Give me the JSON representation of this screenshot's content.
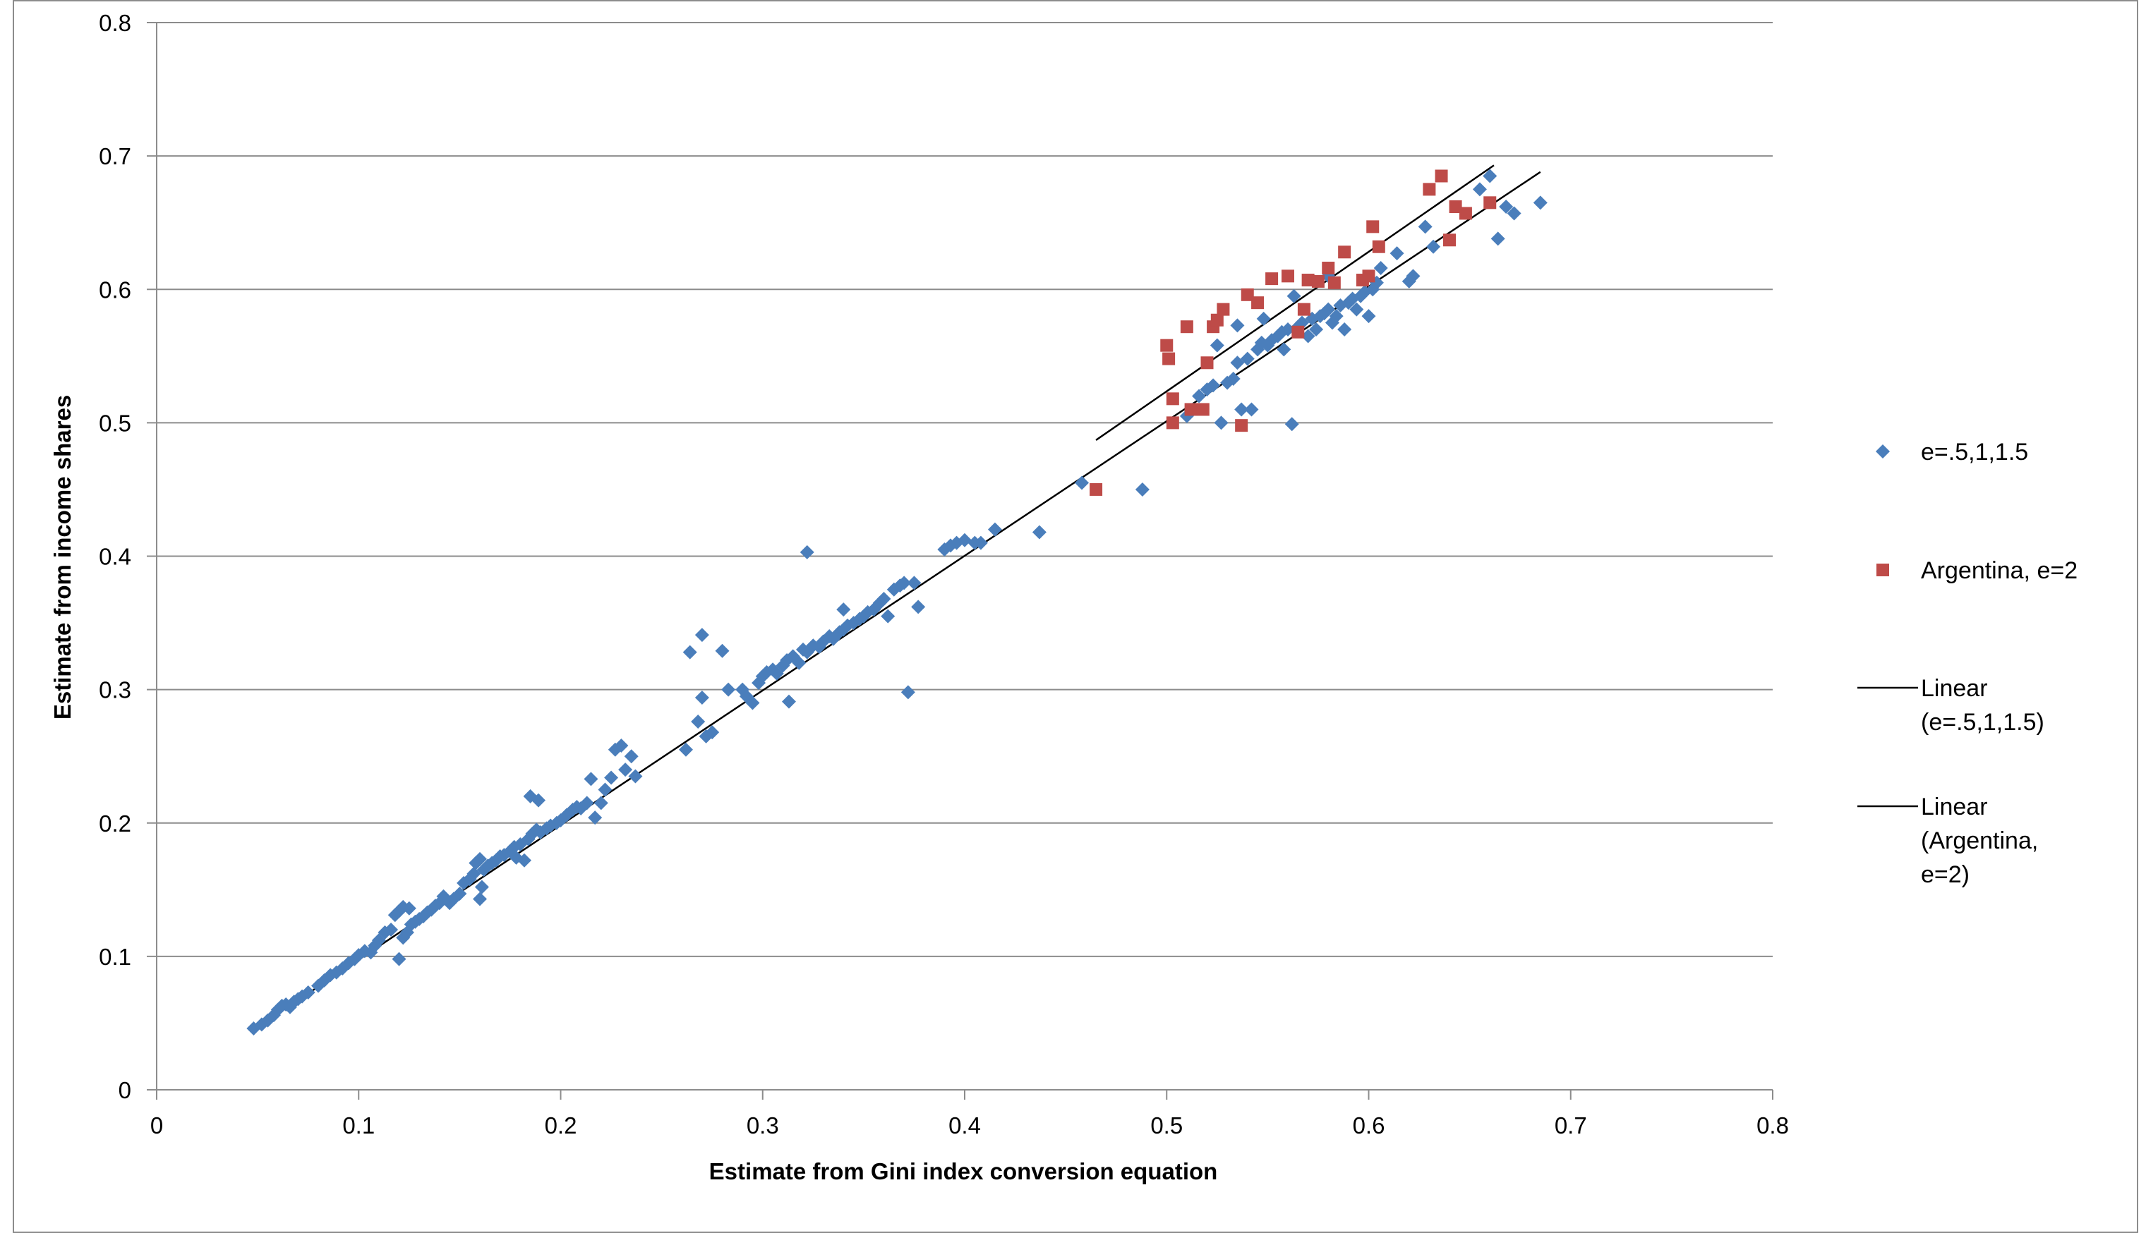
{
  "chart_data": {
    "type": "scatter",
    "xlabel": "Estimate from  Gini index conversion equation",
    "ylabel": "Estimate from income shares",
    "xlim": [
      0,
      0.8
    ],
    "ylim": [
      0,
      0.8
    ],
    "x_ticks": [
      "0",
      "0.1",
      "0.2",
      "0.3",
      "0.4",
      "0.5",
      "0.6",
      "0.7",
      "0.8"
    ],
    "y_ticks": [
      "0",
      "0.1",
      "0.2",
      "0.3",
      "0.4",
      "0.5",
      "0.6",
      "0.7",
      "0.8"
    ],
    "grid": "horizontal",
    "legend_position": "right",
    "series": [
      {
        "name": "e=.5,1,1.5",
        "marker": "diamond",
        "color": "#4a7ebb",
        "points": [
          [
            0.048,
            0.046
          ],
          [
            0.052,
            0.049
          ],
          [
            0.055,
            0.052
          ],
          [
            0.058,
            0.056
          ],
          [
            0.06,
            0.06
          ],
          [
            0.062,
            0.063
          ],
          [
            0.064,
            0.064
          ],
          [
            0.066,
            0.062
          ],
          [
            0.068,
            0.066
          ],
          [
            0.07,
            0.068
          ],
          [
            0.072,
            0.07
          ],
          [
            0.075,
            0.073
          ],
          [
            0.08,
            0.078
          ],
          [
            0.083,
            0.082
          ],
          [
            0.086,
            0.086
          ],
          [
            0.089,
            0.088
          ],
          [
            0.092,
            0.091
          ],
          [
            0.095,
            0.095
          ],
          [
            0.098,
            0.098
          ],
          [
            0.1,
            0.101
          ],
          [
            0.103,
            0.104
          ],
          [
            0.106,
            0.103
          ],
          [
            0.108,
            0.108
          ],
          [
            0.11,
            0.112
          ],
          [
            0.113,
            0.118
          ],
          [
            0.116,
            0.12
          ],
          [
            0.118,
            0.131
          ],
          [
            0.12,
            0.134
          ],
          [
            0.122,
            0.137
          ],
          [
            0.122,
            0.114
          ],
          [
            0.124,
            0.118
          ],
          [
            0.125,
            0.136
          ],
          [
            0.126,
            0.124
          ],
          [
            0.128,
            0.126
          ],
          [
            0.13,
            0.128
          ],
          [
            0.132,
            0.13
          ],
          [
            0.134,
            0.133
          ],
          [
            0.136,
            0.135
          ],
          [
            0.138,
            0.138
          ],
          [
            0.14,
            0.14
          ],
          [
            0.142,
            0.145
          ],
          [
            0.145,
            0.14
          ],
          [
            0.147,
            0.143
          ],
          [
            0.15,
            0.147
          ],
          [
            0.152,
            0.155
          ],
          [
            0.155,
            0.158
          ],
          [
            0.157,
            0.162
          ],
          [
            0.158,
            0.17
          ],
          [
            0.16,
            0.173
          ],
          [
            0.16,
            0.143
          ],
          [
            0.161,
            0.152
          ],
          [
            0.162,
            0.165
          ],
          [
            0.164,
            0.168
          ],
          [
            0.166,
            0.17
          ],
          [
            0.168,
            0.172
          ],
          [
            0.17,
            0.175
          ],
          [
            0.172,
            0.176
          ],
          [
            0.175,
            0.179
          ],
          [
            0.177,
            0.182
          ],
          [
            0.178,
            0.174
          ],
          [
            0.18,
            0.184
          ],
          [
            0.182,
            0.172
          ],
          [
            0.184,
            0.188
          ],
          [
            0.185,
            0.22
          ],
          [
            0.186,
            0.192
          ],
          [
            0.188,
            0.195
          ],
          [
            0.189,
            0.217
          ],
          [
            0.19,
            0.193
          ],
          [
            0.193,
            0.196
          ],
          [
            0.195,
            0.198
          ],
          [
            0.198,
            0.2
          ],
          [
            0.2,
            0.202
          ],
          [
            0.203,
            0.206
          ],
          [
            0.206,
            0.21
          ],
          [
            0.208,
            0.212
          ],
          [
            0.21,
            0.211
          ],
          [
            0.213,
            0.215
          ],
          [
            0.215,
            0.233
          ],
          [
            0.217,
            0.204
          ],
          [
            0.22,
            0.215
          ],
          [
            0.222,
            0.225
          ],
          [
            0.225,
            0.234
          ],
          [
            0.227,
            0.255
          ],
          [
            0.23,
            0.258
          ],
          [
            0.232,
            0.24
          ],
          [
            0.235,
            0.25
          ],
          [
            0.237,
            0.235
          ],
          [
            0.12,
            0.098
          ],
          [
            0.262,
            0.255
          ],
          [
            0.264,
            0.328
          ],
          [
            0.268,
            0.276
          ],
          [
            0.27,
            0.294
          ],
          [
            0.27,
            0.341
          ],
          [
            0.272,
            0.265
          ],
          [
            0.275,
            0.268
          ],
          [
            0.28,
            0.329
          ],
          [
            0.283,
            0.3
          ],
          [
            0.29,
            0.3
          ],
          [
            0.292,
            0.295
          ],
          [
            0.295,
            0.29
          ],
          [
            0.298,
            0.305
          ],
          [
            0.3,
            0.31
          ],
          [
            0.302,
            0.313
          ],
          [
            0.305,
            0.315
          ],
          [
            0.307,
            0.312
          ],
          [
            0.31,
            0.318
          ],
          [
            0.312,
            0.322
          ],
          [
            0.313,
            0.291
          ],
          [
            0.315,
            0.325
          ],
          [
            0.318,
            0.32
          ],
          [
            0.32,
            0.33
          ],
          [
            0.322,
            0.403
          ],
          [
            0.322,
            0.328
          ],
          [
            0.325,
            0.333
          ],
          [
            0.328,
            0.332
          ],
          [
            0.33,
            0.336
          ],
          [
            0.333,
            0.34
          ],
          [
            0.335,
            0.338
          ],
          [
            0.338,
            0.343
          ],
          [
            0.34,
            0.345
          ],
          [
            0.34,
            0.36
          ],
          [
            0.342,
            0.348
          ],
          [
            0.345,
            0.35
          ],
          [
            0.348,
            0.353
          ],
          [
            0.35,
            0.355
          ],
          [
            0.352,
            0.358
          ],
          [
            0.355,
            0.36
          ],
          [
            0.358,
            0.365
          ],
          [
            0.36,
            0.368
          ],
          [
            0.362,
            0.355
          ],
          [
            0.365,
            0.375
          ],
          [
            0.368,
            0.378
          ],
          [
            0.37,
            0.38
          ],
          [
            0.372,
            0.298
          ],
          [
            0.375,
            0.38
          ],
          [
            0.377,
            0.362
          ],
          [
            0.39,
            0.405
          ],
          [
            0.393,
            0.408
          ],
          [
            0.396,
            0.41
          ],
          [
            0.4,
            0.412
          ],
          [
            0.405,
            0.41
          ],
          [
            0.408,
            0.41
          ],
          [
            0.415,
            0.42
          ],
          [
            0.437,
            0.418
          ],
          [
            0.458,
            0.455
          ],
          [
            0.488,
            0.45
          ],
          [
            0.51,
            0.505
          ],
          [
            0.513,
            0.51
          ],
          [
            0.516,
            0.52
          ],
          [
            0.52,
            0.525
          ],
          [
            0.523,
            0.528
          ],
          [
            0.525,
            0.558
          ],
          [
            0.527,
            0.5
          ],
          [
            0.53,
            0.53
          ],
          [
            0.533,
            0.533
          ],
          [
            0.535,
            0.545
          ],
          [
            0.537,
            0.51
          ],
          [
            0.54,
            0.548
          ],
          [
            0.542,
            0.51
          ],
          [
            0.545,
            0.555
          ],
          [
            0.547,
            0.56
          ],
          [
            0.55,
            0.558
          ],
          [
            0.552,
            0.562
          ],
          [
            0.555,
            0.565
          ],
          [
            0.557,
            0.568
          ],
          [
            0.558,
            0.555
          ],
          [
            0.56,
            0.57
          ],
          [
            0.562,
            0.499
          ],
          [
            0.563,
            0.595
          ],
          [
            0.565,
            0.572
          ],
          [
            0.567,
            0.575
          ],
          [
            0.57,
            0.565
          ],
          [
            0.572,
            0.578
          ],
          [
            0.574,
            0.57
          ],
          [
            0.576,
            0.58
          ],
          [
            0.578,
            0.582
          ],
          [
            0.58,
            0.585
          ],
          [
            0.582,
            0.575
          ],
          [
            0.584,
            0.58
          ],
          [
            0.586,
            0.588
          ],
          [
            0.588,
            0.57
          ],
          [
            0.59,
            0.59
          ],
          [
            0.592,
            0.593
          ],
          [
            0.594,
            0.585
          ],
          [
            0.596,
            0.595
          ],
          [
            0.598,
            0.598
          ],
          [
            0.6,
            0.58
          ],
          [
            0.602,
            0.6
          ],
          [
            0.604,
            0.605
          ],
          [
            0.606,
            0.616
          ],
          [
            0.614,
            0.627
          ],
          [
            0.62,
            0.606
          ],
          [
            0.622,
            0.61
          ],
          [
            0.628,
            0.647
          ],
          [
            0.632,
            0.632
          ],
          [
            0.655,
            0.675
          ],
          [
            0.66,
            0.685
          ],
          [
            0.664,
            0.638
          ],
          [
            0.668,
            0.662
          ],
          [
            0.672,
            0.657
          ],
          [
            0.685,
            0.665
          ],
          [
            0.535,
            0.573
          ],
          [
            0.548,
            0.578
          ],
          [
            0.58,
            0.61
          ]
        ]
      },
      {
        "name": "Argentina, e=2",
        "marker": "square",
        "color": "#be4b48",
        "points": [
          [
            0.465,
            0.45
          ],
          [
            0.5,
            0.558
          ],
          [
            0.501,
            0.548
          ],
          [
            0.503,
            0.518
          ],
          [
            0.503,
            0.5
          ],
          [
            0.51,
            0.572
          ],
          [
            0.512,
            0.51
          ],
          [
            0.518,
            0.51
          ],
          [
            0.52,
            0.545
          ],
          [
            0.523,
            0.572
          ],
          [
            0.525,
            0.577
          ],
          [
            0.528,
            0.585
          ],
          [
            0.537,
            0.498
          ],
          [
            0.54,
            0.596
          ],
          [
            0.545,
            0.59
          ],
          [
            0.552,
            0.608
          ],
          [
            0.56,
            0.61
          ],
          [
            0.565,
            0.568
          ],
          [
            0.568,
            0.585
          ],
          [
            0.57,
            0.607
          ],
          [
            0.575,
            0.606
          ],
          [
            0.58,
            0.616
          ],
          [
            0.583,
            0.605
          ],
          [
            0.588,
            0.628
          ],
          [
            0.597,
            0.607
          ],
          [
            0.6,
            0.61
          ],
          [
            0.602,
            0.647
          ],
          [
            0.605,
            0.632
          ],
          [
            0.63,
            0.675
          ],
          [
            0.636,
            0.685
          ],
          [
            0.64,
            0.637
          ],
          [
            0.643,
            0.662
          ],
          [
            0.648,
            0.657
          ],
          [
            0.66,
            0.665
          ]
        ]
      }
    ],
    "trendlines": [
      {
        "name": "Linear\n(e=.5,1,1.5)",
        "x": [
          0.048,
          0.685
        ],
        "y": [
          0.045,
          0.688
        ],
        "color": "#000000"
      },
      {
        "name": "Linear\n(Argentina,\ne=2)",
        "x": [
          0.465,
          0.662
        ],
        "y": [
          0.487,
          0.693
        ],
        "color": "#000000"
      }
    ]
  }
}
